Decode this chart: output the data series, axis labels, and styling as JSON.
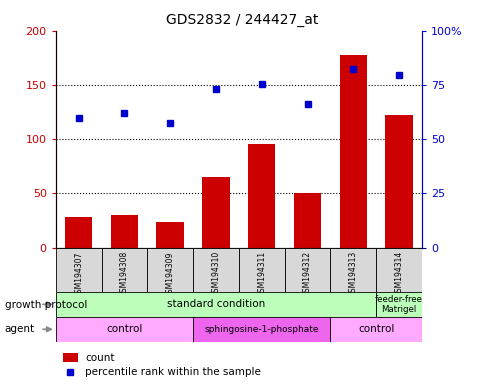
{
  "title": "GDS2832 / 244427_at",
  "samples": [
    "GSM194307",
    "GSM194308",
    "GSM194309",
    "GSM194310",
    "GSM194311",
    "GSM194312",
    "GSM194313",
    "GSM194314"
  ],
  "counts": [
    28,
    30,
    24,
    65,
    96,
    50,
    178,
    122
  ],
  "percentile_ranks_pct": [
    60,
    62,
    57.5,
    73,
    75.5,
    66,
    82.5,
    79.5
  ],
  "left_ylim": [
    0,
    200
  ],
  "right_ylim": [
    0,
    100
  ],
  "left_yticks": [
    0,
    50,
    100,
    150,
    200
  ],
  "right_yticks": [
    0,
    25,
    50,
    75,
    100
  ],
  "right_yticklabels": [
    "0",
    "25",
    "50",
    "75",
    "100%"
  ],
  "hlines": [
    50,
    100,
    150
  ],
  "bar_color": "#cc0000",
  "dot_color": "#0000cc",
  "bg_color": "#ffffff",
  "tick_label_color_left": "#cc0000",
  "tick_label_color_right": "#0000cc",
  "growth_std_color": "#bbffbb",
  "growth_ff_color": "#bbffbb",
  "agent_ctrl_color": "#ffaaff",
  "agent_sph_color": "#ee66ee",
  "legend_count_color": "#cc0000",
  "legend_dot_color": "#0000cc"
}
